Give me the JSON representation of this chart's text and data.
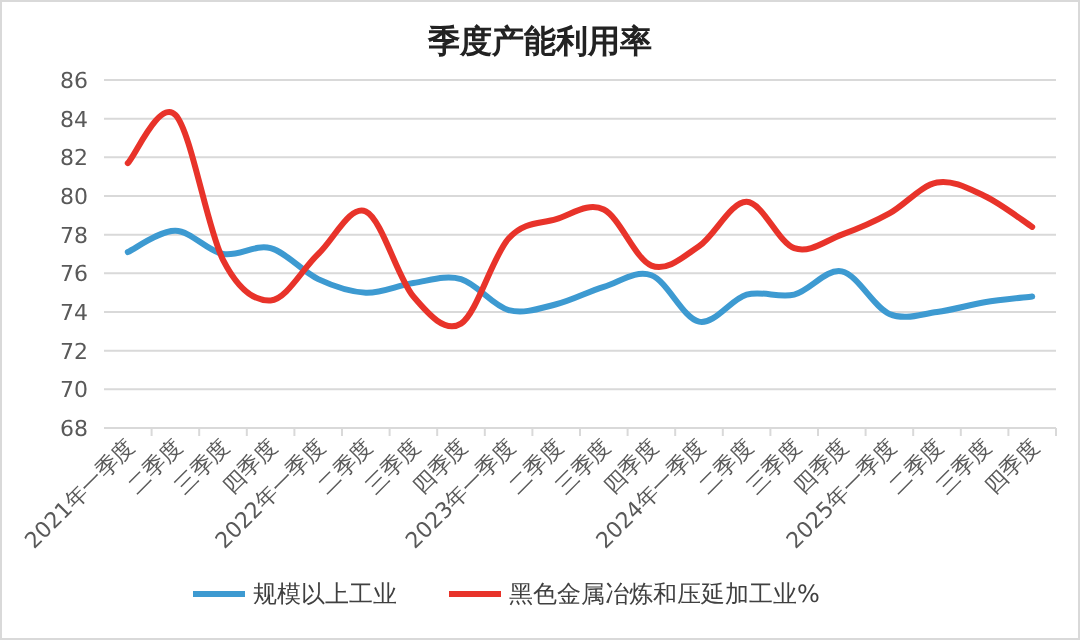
{
  "chart_data": {
    "type": "line",
    "title": "季度产能利用率",
    "categories": [
      "2021年一季度",
      "二季度",
      "三季度",
      "四季度",
      "2022年一季度",
      "二季度",
      "三季度",
      "四季度",
      "2023年一季度",
      "二季度",
      "三季度",
      "四季度",
      "2024年一季度",
      "二季度",
      "三季度",
      "四季度",
      "2025年一季度",
      "二季度",
      "三季度",
      "四季度"
    ],
    "series": [
      {
        "name": "规模以上工业",
        "color": "#3d9ad1",
        "values": [
          77.1,
          78.2,
          77.0,
          77.3,
          75.7,
          75.0,
          75.5,
          75.7,
          74.1,
          74.4,
          75.3,
          75.9,
          73.5,
          74.9,
          74.9,
          76.1,
          73.9,
          74.0,
          74.5,
          74.8
        ]
      },
      {
        "name": "黑色金属冶炼和压延加工业%",
        "color": "#e8332a",
        "values": [
          81.7,
          84.2,
          76.7,
          74.6,
          77.0,
          79.2,
          74.8,
          73.4,
          77.8,
          78.8,
          79.3,
          76.4,
          77.4,
          79.7,
          77.3,
          78.0,
          79.1,
          80.7,
          80.0,
          78.4
        ]
      }
    ],
    "ylim": [
      68,
      86
    ],
    "yticks": [
      68,
      70,
      72,
      74,
      76,
      78,
      80,
      82,
      84,
      86
    ],
    "grid": "y",
    "legend": "bottom"
  }
}
